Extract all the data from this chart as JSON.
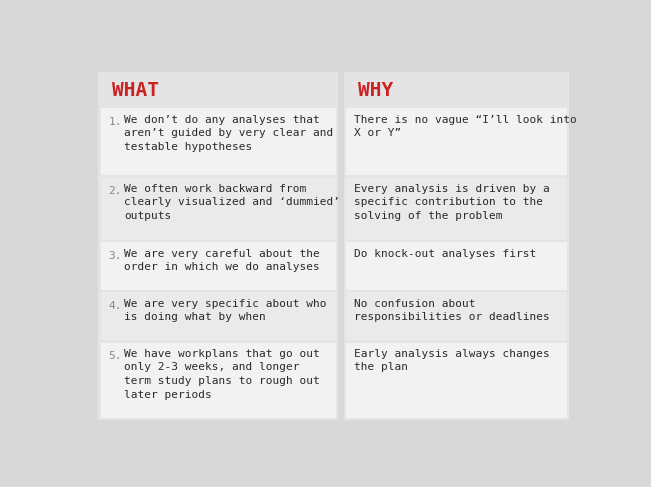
{
  "bg_color": "#d8d8d8",
  "panel_color": "#e4e4e4",
  "cell_color_light": "#eaeaea",
  "cell_color_white": "#f2f2f2",
  "header_color_what": "#cc2222",
  "header_color_why": "#cc2222",
  "number_color": "#888888",
  "text_color": "#2a2a2a",
  "header_what": "WHAT",
  "header_why": "WHY",
  "rows": [
    {
      "what": "We don’t do any analyses that\naren’t guided by very clear and\ntestable hypotheses",
      "why": "There is no vague “I’ll look into\nX or Y”"
    },
    {
      "what": "We often work backward from\nclearly visualized and ‘dummied’\noutputs",
      "why": "Every analysis is driven by a\nspecific contribution to the\nsolving of the problem"
    },
    {
      "what": "We are very careful about the\norder in which we do analyses",
      "why": "Do knock-out analyses first"
    },
    {
      "what": "We are very specific about who\nis doing what by when",
      "why": "No confusion about\nresponsibilities or deadlines"
    },
    {
      "what": "We have workplans that go out\nonly 2-3 weeks, and longer\nterm study plans to rough out\nlater periods",
      "why": "Early analysis always changes\nthe plan"
    }
  ]
}
